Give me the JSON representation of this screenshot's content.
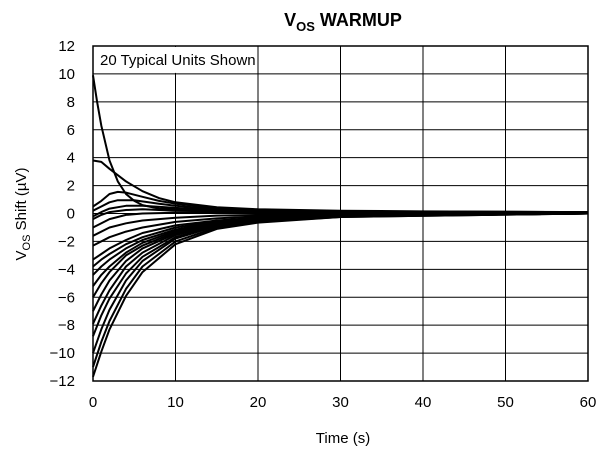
{
  "chart_data": {
    "type": "line",
    "title": {
      "main": "V",
      "sub": "OS",
      "rest": " WARMUP"
    },
    "xlabel": "Time (s)",
    "ylabel": {
      "main": "V",
      "sub": "OS",
      "rest": " Shift (µV)"
    },
    "xlim": [
      0,
      60
    ],
    "ylim": [
      -12,
      12
    ],
    "xticks": [
      0,
      10,
      20,
      30,
      40,
      50,
      60
    ],
    "yticks": [
      -12,
      -10,
      -8,
      -6,
      -4,
      -2,
      0,
      2,
      4,
      6,
      8,
      10,
      12
    ],
    "grid": true,
    "annotation": "20 Typical Units Shown",
    "line_color": "#000000",
    "series": [
      {
        "x": [
          0,
          0.5,
          1,
          2,
          3,
          4,
          5,
          6,
          8,
          10,
          15,
          20,
          30,
          40,
          60
        ],
        "y": [
          9.9,
          8.0,
          6.3,
          3.8,
          2.3,
          1.4,
          0.9,
          0.6,
          0.35,
          0.3,
          0.25,
          0.2,
          0.15,
          0.1,
          0.1
        ]
      },
      {
        "x": [
          0,
          1,
          2,
          4,
          6,
          8,
          10,
          15,
          20,
          30,
          40,
          60
        ],
        "y": [
          3.8,
          3.7,
          3.2,
          2.3,
          1.6,
          1.1,
          0.8,
          0.45,
          0.3,
          0.2,
          0.15,
          0.1
        ]
      },
      {
        "x": [
          0,
          1,
          2,
          3,
          4,
          6,
          8,
          10,
          15,
          20,
          30,
          60
        ],
        "y": [
          0.5,
          0.9,
          1.4,
          1.55,
          1.5,
          1.2,
          0.9,
          0.7,
          0.4,
          0.25,
          0.15,
          0.1
        ]
      },
      {
        "x": [
          0,
          1,
          2,
          3,
          5,
          8,
          10,
          15,
          20,
          30,
          60
        ],
        "y": [
          0.2,
          0.5,
          0.8,
          0.95,
          0.95,
          0.7,
          0.55,
          0.3,
          0.2,
          0.15,
          0.1
        ]
      },
      {
        "x": [
          0,
          1,
          2,
          4,
          6,
          10,
          15,
          20,
          30,
          60
        ],
        "y": [
          -0.2,
          0.1,
          0.35,
          0.55,
          0.55,
          0.4,
          0.25,
          0.15,
          0.1,
          0.1
        ]
      },
      {
        "x": [
          0,
          1,
          2,
          4,
          6,
          10,
          20,
          30,
          60
        ],
        "y": [
          -0.4,
          -0.1,
          0.1,
          0.25,
          0.3,
          0.2,
          0.1,
          0.1,
          0.1
        ]
      },
      {
        "x": [
          0,
          2,
          4,
          6,
          10,
          20,
          30,
          60
        ],
        "y": [
          -1.0,
          -0.4,
          -0.1,
          0.0,
          0.05,
          0.05,
          0.05,
          0.1
        ]
      },
      {
        "x": [
          0,
          2,
          4,
          6,
          10,
          15,
          20,
          30,
          60
        ],
        "y": [
          -1.6,
          -1.0,
          -0.7,
          -0.5,
          -0.3,
          -0.15,
          -0.1,
          0.0,
          0.1
        ]
      },
      {
        "x": [
          0,
          2,
          4,
          6,
          10,
          15,
          20,
          30,
          60
        ],
        "y": [
          -2.3,
          -1.7,
          -1.3,
          -1.0,
          -0.6,
          -0.35,
          -0.2,
          -0.1,
          0.05
        ]
      },
      {
        "x": [
          0,
          1,
          2,
          4,
          6,
          10,
          15,
          20,
          30,
          60
        ],
        "y": [
          -3.3,
          -2.9,
          -2.5,
          -1.9,
          -1.4,
          -0.85,
          -0.5,
          -0.3,
          -0.1,
          0.05
        ]
      },
      {
        "x": [
          0,
          1,
          2,
          4,
          6,
          10,
          15,
          20,
          30,
          60
        ],
        "y": [
          -3.8,
          -3.3,
          -2.9,
          -2.2,
          -1.7,
          -1.0,
          -0.55,
          -0.35,
          -0.15,
          0.05
        ]
      },
      {
        "x": [
          0,
          1,
          2,
          4,
          6,
          10,
          15,
          20,
          30,
          60
        ],
        "y": [
          -4.4,
          -3.8,
          -3.3,
          -2.5,
          -1.9,
          -1.15,
          -0.6,
          -0.4,
          -0.15,
          0.05
        ]
      },
      {
        "x": [
          0,
          1,
          2,
          4,
          6,
          10,
          15,
          20,
          30,
          60
        ],
        "y": [
          -5.2,
          -4.4,
          -3.8,
          -2.8,
          -2.1,
          -1.25,
          -0.65,
          -0.4,
          -0.2,
          0.0
        ]
      },
      {
        "x": [
          0,
          1,
          2,
          4,
          6,
          10,
          15,
          20,
          30,
          60
        ],
        "y": [
          -6.0,
          -5.0,
          -4.2,
          -3.0,
          -2.3,
          -1.35,
          -0.7,
          -0.45,
          -0.2,
          0.0
        ]
      },
      {
        "x": [
          0,
          1,
          2,
          4,
          6,
          10,
          15,
          20,
          30,
          60
        ],
        "y": [
          -7.0,
          -5.8,
          -4.8,
          -3.4,
          -2.5,
          -1.45,
          -0.75,
          -0.45,
          -0.2,
          0.0
        ]
      },
      {
        "x": [
          0,
          1,
          2,
          4,
          6,
          10,
          15,
          20,
          30,
          60
        ],
        "y": [
          -7.9,
          -6.6,
          -5.5,
          -3.8,
          -2.8,
          -1.55,
          -0.8,
          -0.5,
          -0.2,
          0.0
        ]
      },
      {
        "x": [
          0,
          1,
          2,
          4,
          6,
          10,
          15,
          20,
          30,
          60
        ],
        "y": [
          -8.8,
          -7.3,
          -6.1,
          -4.3,
          -3.1,
          -1.7,
          -0.85,
          -0.5,
          -0.2,
          0.0
        ]
      },
      {
        "x": [
          0,
          1,
          2,
          4,
          6,
          10,
          15,
          20,
          30,
          60
        ],
        "y": [
          -10.0,
          -8.3,
          -6.9,
          -4.8,
          -3.4,
          -1.8,
          -0.9,
          -0.55,
          -0.2,
          0.0
        ]
      },
      {
        "x": [
          0,
          1,
          2,
          4,
          6,
          10,
          15,
          20,
          30,
          60
        ],
        "y": [
          -11.0,
          -9.2,
          -7.7,
          -5.4,
          -3.8,
          -2.0,
          -1.0,
          -0.6,
          -0.25,
          0.0
        ]
      },
      {
        "x": [
          0,
          1,
          2,
          4,
          6,
          10,
          15,
          20,
          30,
          60
        ],
        "y": [
          -11.7,
          -9.9,
          -8.3,
          -5.9,
          -4.2,
          -2.2,
          -1.1,
          -0.65,
          -0.25,
          0.0
        ]
      }
    ]
  }
}
